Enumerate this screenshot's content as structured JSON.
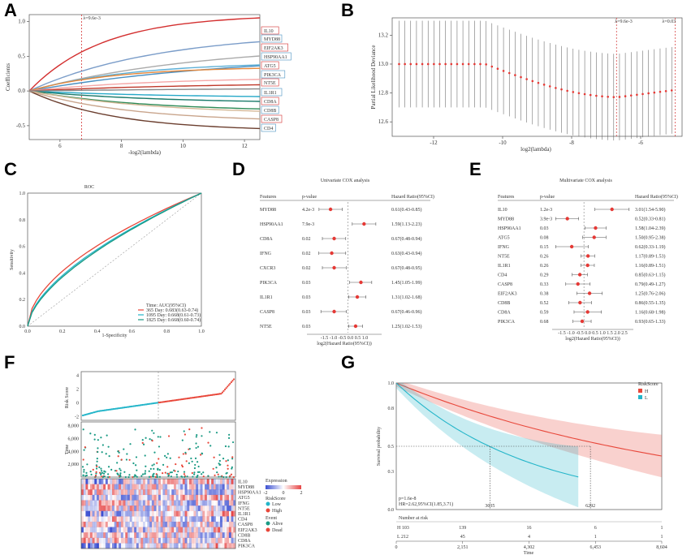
{
  "panels": {
    "A": "A",
    "B": "B",
    "C": "C",
    "D": "D",
    "E": "E",
    "F": "F",
    "G": "G"
  },
  "panel_a": {
    "lambda_label": "λ=9.6e-3",
    "xlabel": "-log2(lambda)",
    "ylabel": "Coefficients",
    "x_ticks": [
      "6",
      "8",
      "10",
      "12"
    ],
    "y_ticks": [
      "1.0",
      "0.5",
      "0.0",
      "-0.5"
    ],
    "gene_labels": [
      "IL10",
      "MYD88",
      "EIF2AK3",
      "HSP90AA1",
      "ATG5",
      "PIK3CA",
      "NT5E",
      "IL1R1",
      "CD8A",
      "CD8B",
      "CASP8",
      "CD4"
    ],
    "colors": [
      "#d32f2f",
      "#555555",
      "#7b9dc9",
      "#4a90c2",
      "#26a8c8",
      "#e6873a",
      "#f0a0a0",
      "#c0392b",
      "#1a7a6a",
      "#2e8b57",
      "#8b5a3c",
      "#5fb0d6",
      "#b0b0b0"
    ]
  },
  "panel_b": {
    "lambda_label_1": "λ=9.6e-3",
    "lambda_label_2": "λ=0.03",
    "xlabel": "log2(lambda)",
    "ylabel": "Partial Likelihood Deviance",
    "x_ticks": [
      "-12",
      "-10",
      "-8",
      "-6"
    ],
    "y_ticks": [
      "13.2",
      "13.0",
      "12.8",
      "12.6"
    ]
  },
  "panel_c": {
    "title": "ROC",
    "xlabel": "1-Specificity",
    "ylabel": "Sensitivity",
    "x_ticks": [
      "0.0",
      "0.2",
      "0.4",
      "0.6",
      "0.8",
      "1.0"
    ],
    "y_ticks": [
      "0.0",
      "0.2",
      "0.4",
      "0.6",
      "0.8",
      "1.0"
    ],
    "legend": [
      "Time: AUC(95%CI)",
      "365 Day: 0.683(0.63-0.74)",
      "1095 Day: 0.668(0.61-0.73)",
      "1825 Day: 0.668(0.60-0.74)"
    ]
  },
  "panel_d": {
    "title": "Univariate  COX analysis",
    "header": [
      "Features",
      "p-value",
      "Hazard Ratio(95%CI)"
    ],
    "xlabel": "log2(Hazard Ratio(95%CI))",
    "x_ticks": "-1.5 -1.0 -0.5 0.0 0.5 1.0",
    "rows": [
      {
        "name": "MYD88",
        "p": "4.2e-3",
        "hr": "0.61(0.43-0.85)",
        "est": -0.72,
        "lo": -1.2,
        "hi": -0.23
      },
      {
        "name": "HSP90AA1",
        "p": "7.9e-3",
        "hr": "1.59(1.13-2.23)",
        "est": 0.67,
        "lo": 0.18,
        "hi": 1.16
      },
      {
        "name": "CD8A",
        "p": "0.02",
        "hr": "0.67(0.48-0.94)",
        "est": -0.57,
        "lo": -1.06,
        "hi": -0.09
      },
      {
        "name": "IFNG",
        "p": "0.02",
        "hr": "0.63(0.43-0.94)",
        "est": -0.67,
        "lo": -1.21,
        "hi": -0.09
      },
      {
        "name": "CXCR3",
        "p": "0.02",
        "hr": "0.67(0.48-0.95)",
        "est": -0.57,
        "lo": -1.06,
        "hi": -0.07
      },
      {
        "name": "PIK3CA",
        "p": "0.03",
        "hr": "1.45(1.05-1.99)",
        "est": 0.54,
        "lo": 0.07,
        "hi": 0.99
      },
      {
        "name": "IL1R1",
        "p": "0.03",
        "hr": "1.31(1.02-1.68)",
        "est": 0.39,
        "lo": 0.03,
        "hi": 0.75
      },
      {
        "name": "CASP8",
        "p": "0.03",
        "hr": "0.67(0.46-0.96)",
        "est": -0.57,
        "lo": -1.12,
        "hi": -0.06
      },
      {
        "name": "NT5E",
        "p": "0.03",
        "hr": "1.25(1.02-1.53)",
        "est": 0.32,
        "lo": 0.03,
        "hi": 0.61
      }
    ]
  },
  "panel_e": {
    "title": "Multivariate COX analysis",
    "header": [
      "Features",
      "p-value",
      "Hazard Ratio(95%CI)"
    ],
    "xlabel": "log2(Hazard Ratio(95%CI))",
    "x_ticks": "-1.5 -1.0 -0.5 0.0 0.5 1.0 1.5 2.0 2.5",
    "rows": [
      {
        "name": "IL10",
        "p": "1.2e-3",
        "hr": "3.01(1.54-5.90)",
        "est": 1.59,
        "lo": 0.62,
        "hi": 2.56
      },
      {
        "name": "MYD88",
        "p": "3.9e-3",
        "hr": "0.52(0.33-0.81)",
        "est": -0.94,
        "lo": -1.6,
        "hi": -0.3
      },
      {
        "name": "HSP90AA1",
        "p": "0.03",
        "hr": "1.58(1.04-2.39)",
        "est": 0.66,
        "lo": 0.06,
        "hi": 1.26
      },
      {
        "name": "ATG5",
        "p": "0.08",
        "hr": "1.50(0.95-2.38)",
        "est": 0.58,
        "lo": -0.07,
        "hi": 1.25
      },
      {
        "name": "IFNG",
        "p": "0.15",
        "hr": "0.62(0.33-1.19)",
        "est": -0.69,
        "lo": -1.6,
        "hi": 0.25
      },
      {
        "name": "NT5E",
        "p": "0.26",
        "hr": "1.17(0.89-1.53)",
        "est": 0.23,
        "lo": -0.17,
        "hi": 0.61
      },
      {
        "name": "IL1R1",
        "p": "0.26",
        "hr": "1.16(0.89-1.51)",
        "est": 0.21,
        "lo": -0.17,
        "hi": 0.59
      },
      {
        "name": "CD4",
        "p": "0.29",
        "hr": "0.85(0.63-1.15)",
        "est": -0.23,
        "lo": -0.67,
        "hi": 0.2
      },
      {
        "name": "CASP8",
        "p": "0.33",
        "hr": "0.79(0.49-1.27)",
        "est": -0.34,
        "lo": -1.03,
        "hi": 0.35
      },
      {
        "name": "EIF2AK3",
        "p": "0.38",
        "hr": "1.25(0.76-2.06)",
        "est": 0.32,
        "lo": -0.4,
        "hi": 1.04
      },
      {
        "name": "CD8B",
        "p": "0.52",
        "hr": "0.86(0.55-1.35)",
        "est": -0.22,
        "lo": -0.86,
        "hi": 0.43
      },
      {
        "name": "CD8A",
        "p": "0.59",
        "hr": "1.16(0.68-1.98)",
        "est": 0.21,
        "lo": -0.56,
        "hi": 0.99
      },
      {
        "name": "PIK3CA",
        "p": "0.68",
        "hr": "0.93(0.65-1.33)",
        "est": -0.1,
        "lo": -0.62,
        "hi": 0.41
      }
    ]
  },
  "panel_f": {
    "ylabel_top": "Risk Score",
    "ylabel_mid": "Time",
    "risk_ticks": [
      "4",
      "2",
      "0",
      "-2"
    ],
    "time_ticks": [
      "8,000",
      "6,000",
      "4,000",
      "2,000"
    ],
    "genes": [
      "IL10",
      "MYD88",
      "HSP90AA1",
      "ATG5",
      "IFNG",
      "NT5E",
      "IL1R1",
      "CD4",
      "CASP8",
      "EIF2AK3",
      "CD8B",
      "CD8A",
      "PIK3CA"
    ],
    "legend_expression": "Expression",
    "expr_ticks": [
      "-2",
      "0",
      "2"
    ],
    "legend_riskscore": "RiskScore",
    "risk_low": "Low",
    "risk_high": "High",
    "legend_event": "Event",
    "event_alive": "Alive",
    "event_dead": "Dead"
  },
  "panel_g": {
    "legend_title": "RiskScore",
    "legend_h": "H",
    "legend_l": "L",
    "ylabel": "Survival probability",
    "xlabel": "Time",
    "y_ticks": [
      "1.0",
      "0.8",
      "0.5",
      "0.3",
      "0.0"
    ],
    "x_ticks": [
      "0",
      "2,151",
      "4,302",
      "6,453",
      "8,604"
    ],
    "median_labels": [
      "3035",
      "6292"
    ],
    "pvalue": "p=1.6e-8",
    "hr": "HR=2.62,95%CI(1.85,3.71)",
    "risk_table_title": "Number at risk",
    "risk_H": [
      "H 103",
      "139",
      "16",
      "6",
      "1"
    ],
    "risk_L": [
      "L 212",
      "45",
      "4",
      "1",
      "1"
    ]
  },
  "colors": {
    "red": "#e8473a",
    "cyan": "#23b5c9",
    "teal": "#1a9a84",
    "dark_red": "#c62828"
  }
}
